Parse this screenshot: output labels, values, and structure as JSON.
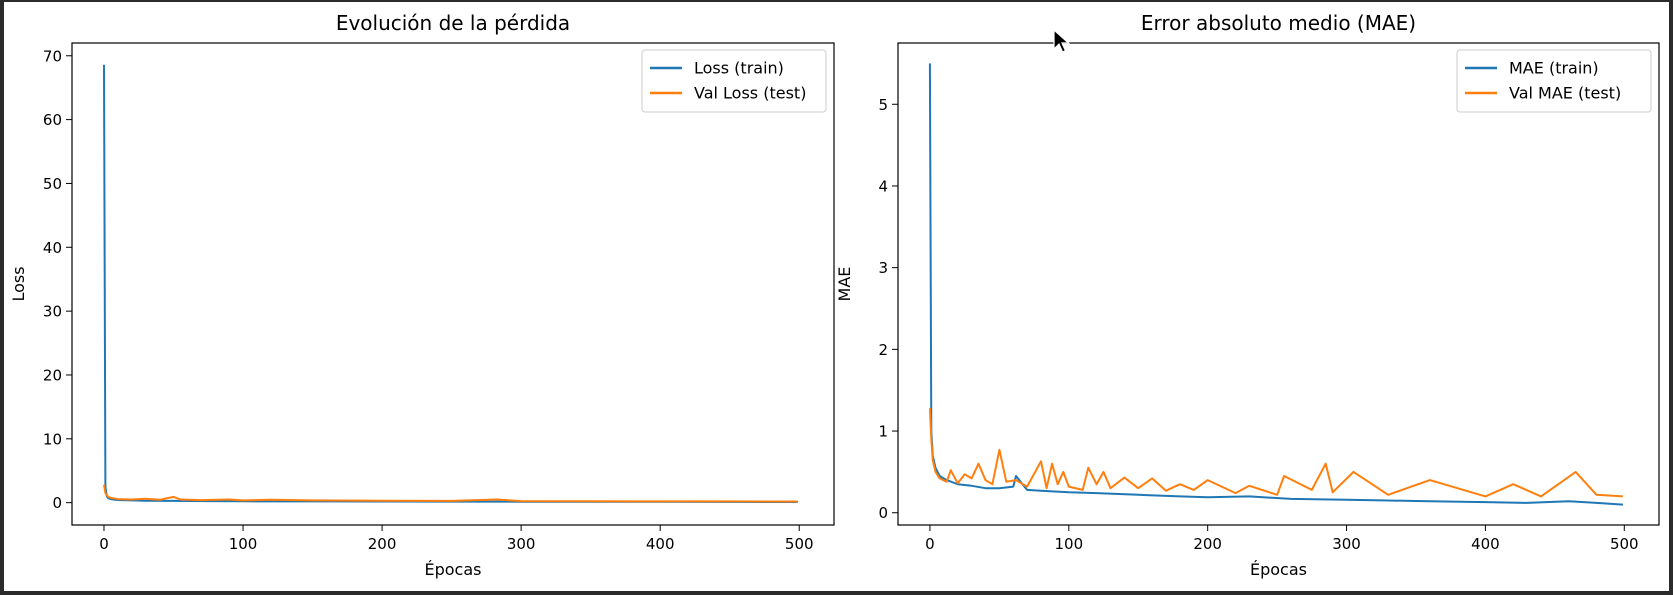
{
  "chart_data": [
    {
      "type": "line",
      "title": "Evolución de la pérdida",
      "xlabel": "Épocas",
      "ylabel": "Loss",
      "xlim": [
        -23,
        525
      ],
      "ylim": [
        -3.5,
        72
      ],
      "xticks": [
        0,
        100,
        200,
        300,
        400,
        500
      ],
      "yticks": [
        0,
        10,
        20,
        30,
        40,
        50,
        60,
        70
      ],
      "legend_position": "top-right",
      "series": [
        {
          "name": "Loss (train)",
          "color": "#1f77b4",
          "x": [
            0,
            1,
            2,
            3,
            5,
            8,
            12,
            20,
            30,
            50,
            75,
            100,
            150,
            200,
            250,
            300,
            350,
            400,
            450,
            499
          ],
          "values": [
            68.6,
            2.5,
            1.0,
            0.7,
            0.55,
            0.45,
            0.4,
            0.35,
            0.3,
            0.28,
            0.25,
            0.22,
            0.2,
            0.18,
            0.16,
            0.15,
            0.14,
            0.13,
            0.12,
            0.11
          ]
        },
        {
          "name": "Val Loss (test)",
          "color": "#ff7f0e",
          "x": [
            0,
            1,
            3,
            6,
            10,
            20,
            30,
            40,
            50,
            55,
            70,
            90,
            100,
            120,
            150,
            200,
            250,
            283,
            300,
            350,
            400,
            450,
            499
          ],
          "values": [
            2.8,
            1.5,
            0.9,
            0.7,
            0.55,
            0.5,
            0.6,
            0.45,
            0.9,
            0.5,
            0.4,
            0.5,
            0.35,
            0.45,
            0.35,
            0.3,
            0.28,
            0.5,
            0.25,
            0.22,
            0.2,
            0.2,
            0.18
          ]
        }
      ]
    },
    {
      "type": "line",
      "title": "Error absoluto medio (MAE)",
      "xlabel": "Épocas",
      "ylabel": "MAE",
      "xlim": [
        -23,
        525
      ],
      "ylim": [
        -0.15,
        5.75
      ],
      "xticks": [
        0,
        100,
        200,
        300,
        400,
        500
      ],
      "yticks": [
        0,
        1,
        2,
        3,
        4,
        5
      ],
      "legend_position": "top-right",
      "series": [
        {
          "name": "MAE (train)",
          "color": "#1f77b4",
          "x": [
            0,
            1,
            2,
            4,
            7,
            12,
            20,
            30,
            40,
            50,
            60,
            62,
            70,
            80,
            100,
            120,
            150,
            180,
            200,
            230,
            260,
            300,
            330,
            360,
            400,
            430,
            460,
            480,
            499
          ],
          "values": [
            5.5,
            1.0,
            0.7,
            0.55,
            0.45,
            0.4,
            0.35,
            0.33,
            0.3,
            0.3,
            0.32,
            0.45,
            0.28,
            0.27,
            0.25,
            0.24,
            0.22,
            0.2,
            0.19,
            0.2,
            0.17,
            0.16,
            0.15,
            0.14,
            0.13,
            0.12,
            0.14,
            0.12,
            0.1
          ]
        },
        {
          "name": "Val MAE (test)",
          "color": "#ff7f0e",
          "x": [
            0,
            1,
            2,
            4,
            7,
            12,
            15,
            20,
            25,
            30,
            35,
            40,
            45,
            50,
            55,
            62,
            70,
            80,
            84,
            88,
            92,
            96,
            100,
            110,
            114,
            120,
            125,
            130,
            140,
            150,
            160,
            170,
            180,
            190,
            200,
            220,
            230,
            250,
            255,
            275,
            285,
            290,
            305,
            330,
            360,
            400,
            420,
            440,
            465,
            480,
            499
          ],
          "values": [
            1.28,
            0.9,
            0.65,
            0.5,
            0.42,
            0.38,
            0.52,
            0.36,
            0.47,
            0.42,
            0.6,
            0.4,
            0.35,
            0.77,
            0.38,
            0.4,
            0.32,
            0.63,
            0.3,
            0.6,
            0.35,
            0.5,
            0.32,
            0.28,
            0.55,
            0.35,
            0.5,
            0.3,
            0.43,
            0.3,
            0.42,
            0.27,
            0.35,
            0.28,
            0.4,
            0.24,
            0.33,
            0.22,
            0.45,
            0.28,
            0.6,
            0.25,
            0.5,
            0.22,
            0.4,
            0.2,
            0.35,
            0.2,
            0.5,
            0.22,
            0.2
          ]
        }
      ]
    }
  ]
}
